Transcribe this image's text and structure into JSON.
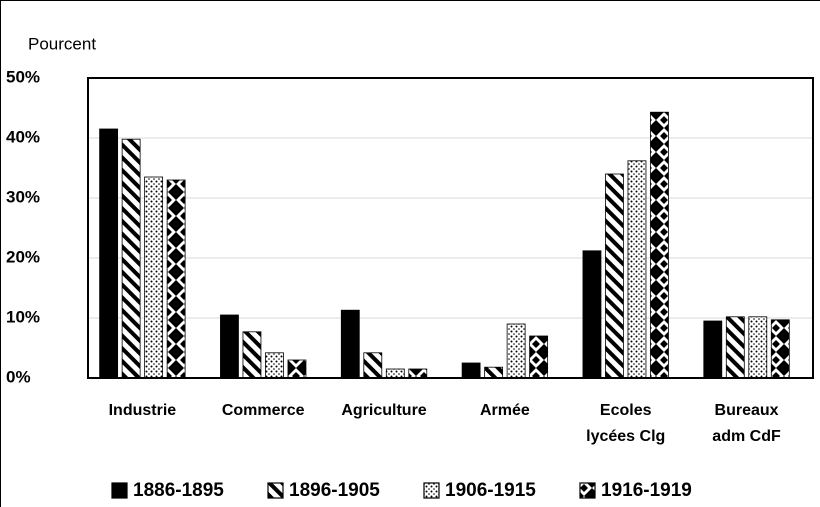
{
  "chart_data": {
    "type": "bar",
    "title": "Pourcent",
    "categories": [
      "Industrie",
      "Commerce",
      "Agriculture",
      "Armée",
      "Ecoles\nlycées Clg",
      "Bureaux\nadm CdF"
    ],
    "series": [
      {
        "name": "1886-1895",
        "color": "#000000",
        "pattern": "solid",
        "values": [
          41.5,
          10.5,
          11.3,
          2.5,
          21.2,
          9.5
        ]
      },
      {
        "name": "1896-1905",
        "color": "#000000",
        "pattern": "diagonal",
        "values": [
          39.8,
          7.7,
          4.2,
          1.8,
          34,
          10.2
        ]
      },
      {
        "name": "1906-1915",
        "color": "#000000",
        "pattern": "dots",
        "values": [
          33.5,
          4.2,
          1.5,
          9,
          36.2,
          10.2
        ]
      },
      {
        "name": "1916-1919",
        "color": "#000000",
        "pattern": "diamonds",
        "values": [
          33,
          3,
          1.5,
          7,
          44.3,
          9.7
        ]
      }
    ],
    "ylim": [
      0,
      50
    ],
    "yticks": [
      {
        "value": 0,
        "label": "0%"
      },
      {
        "value": 10,
        "label": "10%"
      },
      {
        "value": 20,
        "label": "20%"
      },
      {
        "value": 30,
        "label": "30%"
      },
      {
        "value": 40,
        "label": "40%"
      },
      {
        "value": 50,
        "label": "50%"
      }
    ],
    "grid": true,
    "legend": "bottom"
  }
}
